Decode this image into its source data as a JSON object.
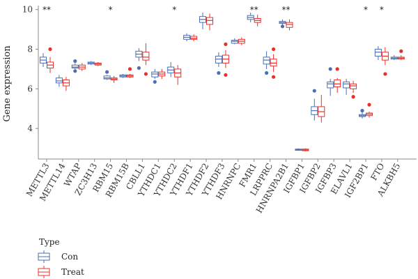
{
  "chart_data": {
    "type": "boxplot",
    "ylabel": "Gene expression",
    "ylim": [
      2.6,
      10.2
    ],
    "yticks": [
      4,
      6,
      8,
      10
    ],
    "legend": {
      "title": "Type",
      "position": "bottom-left",
      "entries": [
        "Con",
        "Treat"
      ]
    },
    "colors": {
      "Con": "#4a6fb5",
      "Treat": "#e8302a",
      "axis": "#888888"
    },
    "categories": [
      "METTL3",
      "METTL14",
      "WTAP",
      "ZC3H13",
      "RBM15",
      "RBM15B",
      "CBLL1",
      "YTHDC1",
      "YTHDC2",
      "YTHDF1",
      "YTHDF2",
      "YTHDF3",
      "HNRNPC",
      "FMR1",
      "LRPPRC",
      "HNRNPA2B1",
      "IGFBP1",
      "IGFBP2",
      "IGFBP3",
      "ELAVL1",
      "IGF2BP1",
      "FTO",
      "ALKBH5"
    ],
    "significance": [
      "**",
      "",
      "",
      "",
      "*",
      "",
      "",
      "",
      "*",
      "",
      "",
      "",
      "",
      "**",
      "",
      "**",
      "",
      "",
      "",
      "",
      "*",
      "*",
      ""
    ],
    "series": [
      {
        "name": "Con",
        "boxes": [
          {
            "min": 7.1,
            "q1": 7.3,
            "median": 7.45,
            "q3": 7.6,
            "max": 7.8,
            "outliers": []
          },
          {
            "min": 6.1,
            "q1": 6.3,
            "median": 6.4,
            "q3": 6.55,
            "max": 6.7,
            "outliers": []
          },
          {
            "min": 7.0,
            "q1": 7.05,
            "median": 7.1,
            "q3": 7.2,
            "max": 7.3,
            "outliers": [
              7.4,
              6.9
            ]
          },
          {
            "min": 7.2,
            "q1": 7.25,
            "median": 7.3,
            "q3": 7.35,
            "max": 7.4,
            "outliers": []
          },
          {
            "min": 6.45,
            "q1": 6.5,
            "median": 6.55,
            "q3": 6.65,
            "max": 6.7,
            "outliers": [
              6.85
            ]
          },
          {
            "min": 6.55,
            "q1": 6.6,
            "median": 6.65,
            "q3": 6.7,
            "max": 6.75,
            "outliers": []
          },
          {
            "min": 7.4,
            "q1": 7.6,
            "median": 7.75,
            "q3": 7.9,
            "max": 8.05,
            "outliers": [
              7.05
            ]
          },
          {
            "min": 6.5,
            "q1": 6.6,
            "median": 6.75,
            "q3": 6.85,
            "max": 7.0,
            "outliers": [
              6.35
            ]
          },
          {
            "min": 6.6,
            "q1": 6.8,
            "median": 6.95,
            "q3": 7.1,
            "max": 7.35,
            "outliers": []
          },
          {
            "min": 8.4,
            "q1": 8.5,
            "median": 8.6,
            "q3": 8.7,
            "max": 8.8,
            "outliers": []
          },
          {
            "min": 9.0,
            "q1": 9.35,
            "median": 9.5,
            "q3": 9.65,
            "max": 9.85,
            "outliers": []
          },
          {
            "min": 7.1,
            "q1": 7.3,
            "median": 7.5,
            "q3": 7.65,
            "max": 7.85,
            "outliers": [
              6.8
            ]
          },
          {
            "min": 8.25,
            "q1": 8.3,
            "median": 8.4,
            "q3": 8.45,
            "max": 8.55,
            "outliers": []
          },
          {
            "min": 9.35,
            "q1": 9.5,
            "median": 9.6,
            "q3": 9.7,
            "max": 9.85,
            "outliers": []
          },
          {
            "min": 7.0,
            "q1": 7.25,
            "median": 7.45,
            "q3": 7.6,
            "max": 7.9,
            "outliers": [
              6.8
            ]
          },
          {
            "min": 9.15,
            "q1": 9.3,
            "median": 9.35,
            "q3": 9.4,
            "max": 9.5,
            "outliers": [
              9.15
            ]
          },
          {
            "min": 2.88,
            "q1": 2.9,
            "median": 2.93,
            "q3": 2.96,
            "max": 3.0,
            "outliers": []
          },
          {
            "min": 4.4,
            "q1": 4.7,
            "median": 4.9,
            "q3": 5.1,
            "max": 5.5,
            "outliers": [
              5.9
            ]
          },
          {
            "min": 5.65,
            "q1": 6.05,
            "median": 6.25,
            "q3": 6.35,
            "max": 6.5,
            "outliers": [
              7.0
            ]
          },
          {
            "min": 5.7,
            "q1": 6.05,
            "median": 6.25,
            "q3": 6.35,
            "max": 6.5,
            "outliers": []
          },
          {
            "min": 4.5,
            "q1": 4.6,
            "median": 4.65,
            "q3": 4.7,
            "max": 4.8,
            "outliers": [
              4.9
            ]
          },
          {
            "min": 7.45,
            "q1": 7.65,
            "median": 7.85,
            "q3": 8.0,
            "max": 8.15,
            "outliers": []
          },
          {
            "min": 7.45,
            "q1": 7.5,
            "median": 7.55,
            "q3": 7.6,
            "max": 7.7,
            "outliers": []
          }
        ]
      },
      {
        "name": "Treat",
        "boxes": [
          {
            "min": 6.8,
            "q1": 7.05,
            "median": 7.2,
            "q3": 7.35,
            "max": 7.6,
            "outliers": [
              8.0
            ]
          },
          {
            "min": 5.9,
            "q1": 6.15,
            "median": 6.3,
            "q3": 6.45,
            "max": 6.6,
            "outliers": []
          },
          {
            "min": 6.9,
            "q1": 7.0,
            "median": 7.1,
            "q3": 7.2,
            "max": 7.3,
            "outliers": []
          },
          {
            "min": 7.15,
            "q1": 7.2,
            "median": 7.25,
            "q3": 7.3,
            "max": 7.35,
            "outliers": []
          },
          {
            "min": 6.3,
            "q1": 6.45,
            "median": 6.5,
            "q3": 6.55,
            "max": 6.65,
            "outliers": []
          },
          {
            "min": 6.55,
            "q1": 6.6,
            "median": 6.65,
            "q3": 6.7,
            "max": 6.75,
            "outliers": [
              7.0
            ]
          },
          {
            "min": 7.2,
            "q1": 7.45,
            "median": 7.6,
            "q3": 7.85,
            "max": 8.3,
            "outliers": [
              6.75
            ]
          },
          {
            "min": 6.5,
            "q1": 6.65,
            "median": 6.75,
            "q3": 6.85,
            "max": 7.0,
            "outliers": []
          },
          {
            "min": 6.2,
            "q1": 6.6,
            "median": 6.8,
            "q3": 7.0,
            "max": 7.2,
            "outliers": []
          },
          {
            "min": 8.4,
            "q1": 8.5,
            "median": 8.55,
            "q3": 8.65,
            "max": 8.75,
            "outliers": []
          },
          {
            "min": 8.95,
            "q1": 9.25,
            "median": 9.45,
            "q3": 9.6,
            "max": 9.8,
            "outliers": []
          },
          {
            "min": 7.05,
            "q1": 7.3,
            "median": 7.5,
            "q3": 7.7,
            "max": 7.95,
            "outliers": [
              8.25,
              6.7
            ]
          },
          {
            "min": 8.2,
            "q1": 8.3,
            "median": 8.4,
            "q3": 8.5,
            "max": 8.6,
            "outliers": []
          },
          {
            "min": 9.15,
            "q1": 9.35,
            "median": 9.45,
            "q3": 9.55,
            "max": 9.75,
            "outliers": []
          },
          {
            "min": 6.85,
            "q1": 7.15,
            "median": 7.3,
            "q3": 7.5,
            "max": 7.75,
            "outliers": [
              8.0,
              6.6
            ]
          },
          {
            "min": 8.95,
            "q1": 9.1,
            "median": 9.25,
            "q3": 9.35,
            "max": 9.5,
            "outliers": []
          },
          {
            "min": 2.85,
            "q1": 2.88,
            "median": 2.92,
            "q3": 2.96,
            "max": 3.0,
            "outliers": []
          },
          {
            "min": 4.3,
            "q1": 4.6,
            "median": 4.85,
            "q3": 5.1,
            "max": 5.7,
            "outliers": []
          },
          {
            "min": 5.8,
            "q1": 6.1,
            "median": 6.25,
            "q3": 6.45,
            "max": 6.55,
            "outliers": [
              7.0
            ]
          },
          {
            "min": 5.8,
            "q1": 6.0,
            "median": 6.15,
            "q3": 6.25,
            "max": 6.4,
            "outliers": [
              5.6
            ]
          },
          {
            "min": 4.55,
            "q1": 4.65,
            "median": 4.72,
            "q3": 4.78,
            "max": 4.85,
            "outliers": [
              5.2
            ]
          },
          {
            "min": 7.2,
            "q1": 7.45,
            "median": 7.65,
            "q3": 7.85,
            "max": 8.1,
            "outliers": [
              6.75
            ]
          },
          {
            "min": 7.45,
            "q1": 7.5,
            "median": 7.55,
            "q3": 7.6,
            "max": 7.7,
            "outliers": [
              7.9
            ]
          }
        ]
      }
    ]
  }
}
